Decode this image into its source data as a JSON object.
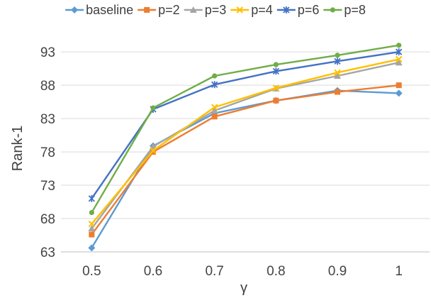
{
  "chart_data": {
    "type": "line",
    "title": "",
    "xlabel": "γ",
    "ylabel": "Rank-1",
    "x": [
      "0.5",
      "0.6",
      "0.7",
      "0.8",
      "0.9",
      "1"
    ],
    "ylim": [
      63,
      96
    ],
    "yticks": [
      "63",
      "68",
      "73",
      "78",
      "83",
      "88",
      "93"
    ],
    "grid": "horizontal",
    "legend": "top",
    "series": [
      {
        "name": "baseline",
        "color": "#5B9BD5",
        "marker": "diamond",
        "values": [
          63.6,
          78.9,
          83.8,
          85.7,
          87.2,
          86.8
        ]
      },
      {
        "name": "p=2",
        "color": "#ED7D31",
        "marker": "square",
        "values": [
          65.6,
          78.0,
          83.3,
          85.7,
          87.0,
          88.0
        ]
      },
      {
        "name": "p=3",
        "color": "#A5A5A5",
        "marker": "triangle",
        "values": [
          66.5,
          78.8,
          84.2,
          87.5,
          89.4,
          91.4
        ]
      },
      {
        "name": "p=4",
        "color": "#FFC000",
        "marker": "x",
        "values": [
          67.2,
          78.2,
          84.7,
          87.6,
          89.9,
          91.9
        ]
      },
      {
        "name": "p=6",
        "color": "#4472C4",
        "marker": "star",
        "values": [
          71.0,
          84.4,
          88.1,
          90.1,
          91.6,
          93.0
        ]
      },
      {
        "name": "p=8",
        "color": "#70AD47",
        "marker": "circle",
        "values": [
          68.9,
          84.6,
          89.4,
          91.1,
          92.5,
          94.0
        ]
      }
    ]
  }
}
